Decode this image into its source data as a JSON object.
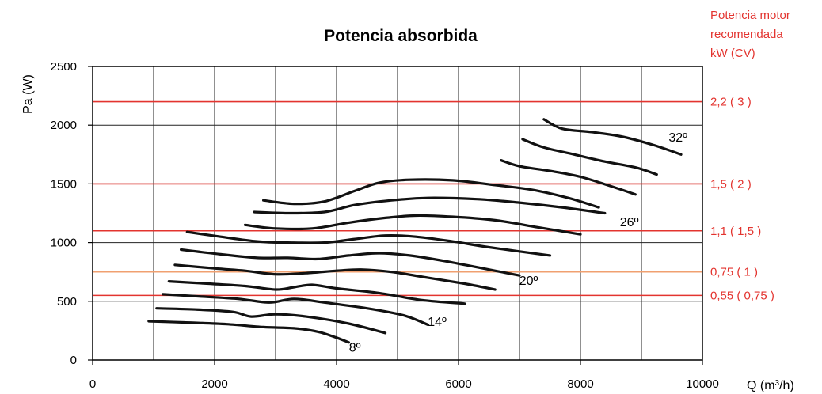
{
  "chart_data": {
    "type": "line",
    "title": "Potencia absorbida",
    "ylabel": "Pa (W)",
    "xlabel_prefix": "Q (m",
    "xlabel_sup": "3",
    "xlabel_suffix": "/h)",
    "xlim": [
      0,
      10000
    ],
    "ylim": [
      0,
      2500
    ],
    "x_ticks": [
      0,
      2000,
      4000,
      6000,
      8000,
      10000
    ],
    "y_ticks": [
      0,
      500,
      1000,
      1500,
      2000,
      2500
    ],
    "x_tick_labels": [
      "0",
      "2000",
      "4000",
      "6000",
      "8000",
      "10000"
    ],
    "y_tick_labels": [
      "0",
      "500",
      "1000",
      "1500",
      "2000",
      "2500"
    ],
    "grid": true,
    "right_axis_title": [
      "Potencia motor",
      "recomendada",
      "kW (CV)"
    ],
    "motor_power_lines": [
      {
        "y": 2200,
        "label": "2,2 ( 3 )",
        "color": "#e3342f"
      },
      {
        "y": 1500,
        "label": "1,5 ( 2 )",
        "color": "#e3342f"
      },
      {
        "y": 1100,
        "label": "1,1 ( 1,5 )",
        "color": "#e3342f"
      },
      {
        "y": 750,
        "label": "0,75 ( 1 )",
        "color": "#f0a070"
      },
      {
        "y": 550,
        "label": "0,55 ( 0,75 )",
        "color": "#e3342f"
      }
    ],
    "curve_labels": [
      {
        "text": "8º",
        "x": 4300,
        "y": 70
      },
      {
        "text": "14º",
        "x": 5650,
        "y": 290
      },
      {
        "text": "20º",
        "x": 7150,
        "y": 640
      },
      {
        "text": "26º",
        "x": 8800,
        "y": 1140
      },
      {
        "text": "32º",
        "x": 9600,
        "y": 1860
      }
    ],
    "series": [
      {
        "values": [
          [
            920,
            330
          ],
          [
            1500,
            320
          ],
          [
            2200,
            305
          ],
          [
            2800,
            280
          ],
          [
            3300,
            270
          ],
          [
            3700,
            240
          ],
          [
            4000,
            190
          ],
          [
            4200,
            150
          ]
        ]
      },
      {
        "values": [
          [
            1050,
            440
          ],
          [
            1700,
            430
          ],
          [
            2300,
            410
          ],
          [
            2600,
            370
          ],
          [
            3000,
            390
          ],
          [
            3500,
            370
          ],
          [
            4200,
            310
          ],
          [
            4800,
            230
          ]
        ]
      },
      {
        "values": [
          [
            1150,
            560
          ],
          [
            1800,
            540
          ],
          [
            2400,
            520
          ],
          [
            2900,
            490
          ],
          [
            3300,
            520
          ],
          [
            3800,
            490
          ],
          [
            4500,
            440
          ],
          [
            5100,
            380
          ],
          [
            5500,
            300
          ]
        ]
      },
      {
        "values": [
          [
            1250,
            670
          ],
          [
            1900,
            650
          ],
          [
            2500,
            630
          ],
          [
            3000,
            600
          ],
          [
            3300,
            620
          ],
          [
            3600,
            640
          ],
          [
            4000,
            610
          ],
          [
            4700,
            570
          ],
          [
            5400,
            510
          ],
          [
            6100,
            480
          ]
        ]
      },
      {
        "values": [
          [
            1350,
            810
          ],
          [
            2000,
            780
          ],
          [
            2500,
            760
          ],
          [
            3000,
            730
          ],
          [
            3500,
            740
          ],
          [
            4000,
            760
          ],
          [
            4400,
            770
          ],
          [
            4900,
            750
          ],
          [
            5500,
            700
          ],
          [
            6100,
            650
          ],
          [
            6600,
            600
          ]
        ]
      },
      {
        "values": [
          [
            1450,
            940
          ],
          [
            2100,
            900
          ],
          [
            2700,
            870
          ],
          [
            3200,
            870
          ],
          [
            3700,
            860
          ],
          [
            4200,
            890
          ],
          [
            4700,
            910
          ],
          [
            5200,
            890
          ],
          [
            5800,
            840
          ],
          [
            6400,
            780
          ],
          [
            7000,
            720
          ]
        ]
      },
      {
        "values": [
          [
            1550,
            1090
          ],
          [
            2100,
            1050
          ],
          [
            2700,
            1010
          ],
          [
            3200,
            1000
          ],
          [
            3800,
            1000
          ],
          [
            4300,
            1030
          ],
          [
            4800,
            1060
          ],
          [
            5300,
            1050
          ],
          [
            5900,
            1010
          ],
          [
            6500,
            960
          ],
          [
            7500,
            890
          ]
        ]
      },
      {
        "values": [
          [
            2500,
            1150
          ],
          [
            3000,
            1120
          ],
          [
            3600,
            1120
          ],
          [
            4200,
            1170
          ],
          [
            4800,
            1210
          ],
          [
            5300,
            1230
          ],
          [
            5900,
            1220
          ],
          [
            6600,
            1190
          ],
          [
            7300,
            1130
          ],
          [
            8000,
            1070
          ]
        ]
      },
      {
        "values": [
          [
            2650,
            1260
          ],
          [
            3200,
            1250
          ],
          [
            3800,
            1260
          ],
          [
            4300,
            1320
          ],
          [
            4900,
            1360
          ],
          [
            5500,
            1380
          ],
          [
            6300,
            1370
          ],
          [
            7000,
            1340
          ],
          [
            7700,
            1300
          ],
          [
            8400,
            1250
          ]
        ]
      },
      {
        "values": [
          [
            2800,
            1360
          ],
          [
            3300,
            1330
          ],
          [
            3800,
            1350
          ],
          [
            4300,
            1440
          ],
          [
            4700,
            1510
          ],
          [
            5200,
            1535
          ],
          [
            5900,
            1530
          ],
          [
            6600,
            1490
          ],
          [
            7200,
            1450
          ],
          [
            7800,
            1380
          ],
          [
            8300,
            1300
          ]
        ]
      },
      {
        "values": [
          [
            6700,
            1700
          ],
          [
            7000,
            1650
          ],
          [
            7500,
            1610
          ],
          [
            8000,
            1560
          ],
          [
            8500,
            1480
          ],
          [
            8900,
            1410
          ]
        ]
      },
      {
        "values": [
          [
            7050,
            1880
          ],
          [
            7400,
            1810
          ],
          [
            7900,
            1750
          ],
          [
            8400,
            1690
          ],
          [
            8900,
            1640
          ],
          [
            9250,
            1580
          ]
        ]
      },
      {
        "values": [
          [
            7400,
            2050
          ],
          [
            7700,
            1970
          ],
          [
            8200,
            1940
          ],
          [
            8700,
            1900
          ],
          [
            9200,
            1830
          ],
          [
            9650,
            1750
          ]
        ]
      }
    ]
  }
}
